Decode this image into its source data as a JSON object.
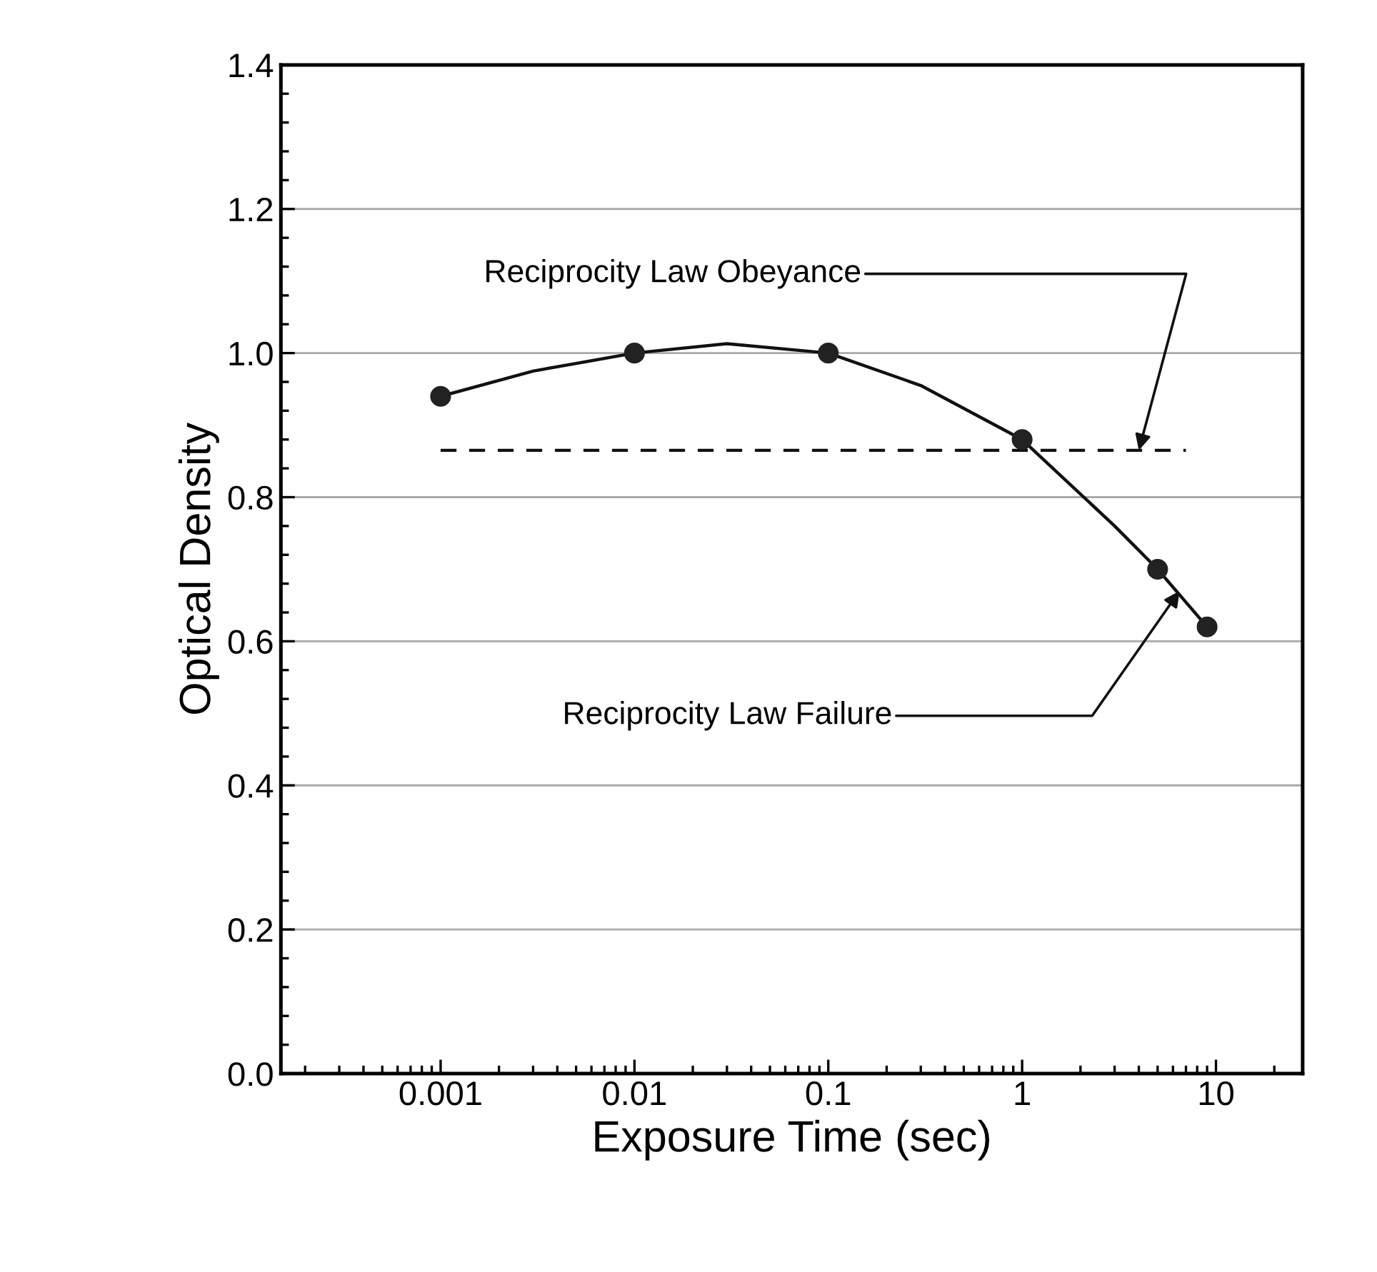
{
  "chart_data": {
    "type": "scatter",
    "xlabel": "Exposure Time (sec)",
    "ylabel": "Optical Density",
    "log": "x",
    "grid": "y",
    "legend": false,
    "xlim": [
      0.00015,
      28
    ],
    "xticks": [
      0.001,
      0.01,
      0.1,
      1,
      10
    ],
    "ylim": [
      0,
      1.4
    ],
    "yticks": [
      {
        "value": 0,
        "label": "0.0"
      },
      0.2,
      0.4,
      0.6,
      0.8,
      {
        "value": 1,
        "label": "1.0"
      },
      1.2,
      1.4
    ],
    "series": [
      {
        "type": "line",
        "color": "#111111",
        "marker": "none",
        "line_style": "solid",
        "x": [
          0.001,
          0.003,
          0.01,
          0.03,
          0.1,
          0.3,
          1,
          3,
          5,
          9
        ],
        "values": [
          0.94,
          0.975,
          1.0,
          1.013,
          1.0,
          0.955,
          0.88,
          0.76,
          0.7,
          0.62
        ]
      },
      {
        "type": "line",
        "color": "#111111",
        "marker": "none",
        "line_style": "dashed",
        "x": [
          0.001,
          7
        ],
        "values": [
          0.865,
          0.865
        ]
      },
      {
        "color": "#222222",
        "marker": "circle",
        "x": [
          0.001,
          0.01,
          0.1,
          1,
          5,
          9
        ],
        "values": [
          0.94,
          1.0,
          1.0,
          0.88,
          0.7,
          0.62
        ]
      }
    ],
    "annotations": [
      {
        "text": "Reciprocity Law Obeyance",
        "x": 4,
        "y": 0.865
      },
      {
        "text": "Reciprocity Law Failure",
        "x": 6.5,
        "y": 0.67
      }
    ]
  }
}
